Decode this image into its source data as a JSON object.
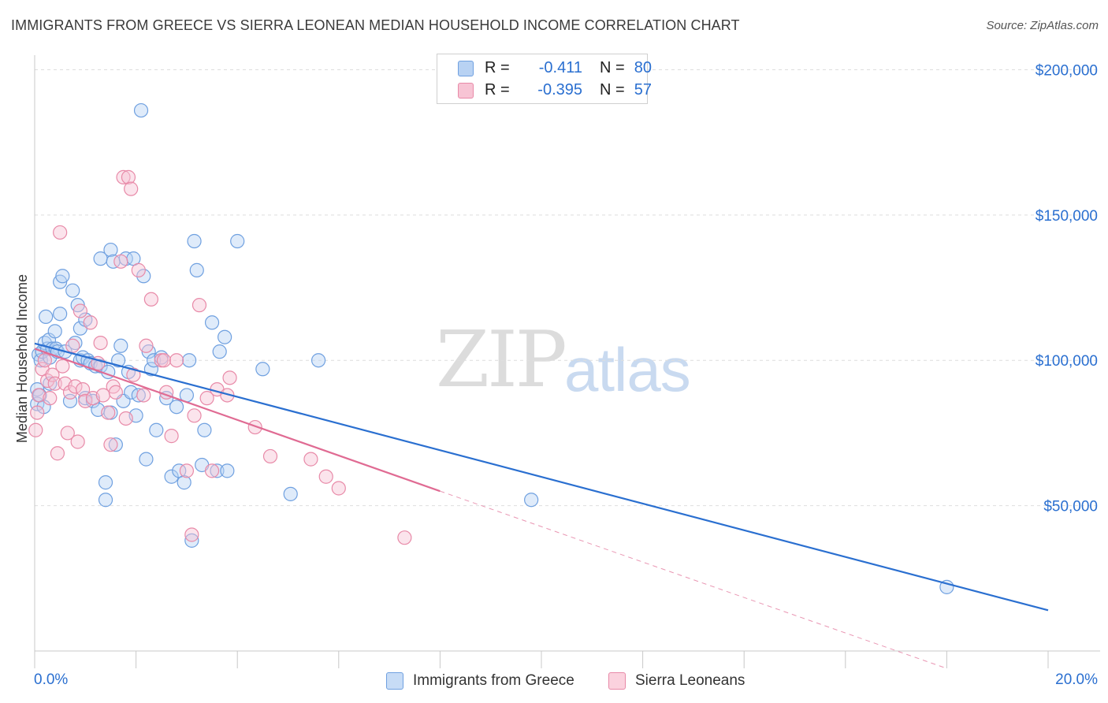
{
  "title": "IMMIGRANTS FROM GREECE VS SIERRA LEONEAN MEDIAN HOUSEHOLD INCOME CORRELATION CHART",
  "source": "Source: ZipAtlas.com",
  "watermark": {
    "zip": "ZIP",
    "atlas": "atlas"
  },
  "legend": {
    "rows": [
      {
        "r_label": "R =",
        "r_value": "-0.411",
        "n_label": "N =",
        "n_value": "80",
        "color": "#6fa0e0",
        "fill": "#b8d2f3"
      },
      {
        "r_label": "R =",
        "r_value": "-0.395",
        "n_label": "N =",
        "n_value": "57",
        "color": "#e88aa8",
        "fill": "#f7c4d4"
      }
    ]
  },
  "bottom_legend": [
    {
      "label": "Immigrants from Greece",
      "fill": "#c7dcf6",
      "stroke": "#6fa0e0"
    },
    {
      "label": "Sierra Leoneans",
      "fill": "#fbd2de",
      "stroke": "#e88aa8"
    }
  ],
  "chart_data": {
    "type": "scatter",
    "title": "IMMIGRANTS FROM GREECE VS SIERRA LEONEAN MEDIAN HOUSEHOLD INCOME CORRELATION CHART",
    "xlabel": "",
    "ylabel": "Median Household Income",
    "xlim": [
      0,
      20
    ],
    "ylim": [
      0,
      205000
    ],
    "x_tick_labels": [
      "0.0%",
      "20.0%"
    ],
    "y_ticks": [
      50000,
      100000,
      150000,
      200000
    ],
    "y_tick_labels": [
      "$50,000",
      "$100,000",
      "$150,000",
      "$200,000"
    ],
    "grid": "horizontal dashed",
    "legend_position": "top-center",
    "colors": {
      "greece": "#2a6fd0",
      "sierra": "#e06b93",
      "axis_label": "#2a6fd0"
    },
    "series": [
      {
        "name": "Immigrants from Greece",
        "trend": {
          "x": [
            0,
            20
          ],
          "y": [
            105800,
            14000
          ],
          "style": "solid"
        },
        "points": [
          [
            0.05,
            90000
          ],
          [
            0.05,
            85000
          ],
          [
            0.08,
            102000
          ],
          [
            0.1,
            88000
          ],
          [
            0.12,
            100000
          ],
          [
            0.15,
            103000
          ],
          [
            0.18,
            84000
          ],
          [
            0.2,
            106000
          ],
          [
            0.22,
            115000
          ],
          [
            0.25,
            104000
          ],
          [
            0.28,
            107000
          ],
          [
            0.3,
            92000
          ],
          [
            0.3,
            101000
          ],
          [
            0.35,
            104000
          ],
          [
            0.4,
            110000
          ],
          [
            0.42,
            104000
          ],
          [
            0.45,
            103000
          ],
          [
            0.5,
            127000
          ],
          [
            0.5,
            116000
          ],
          [
            0.55,
            129000
          ],
          [
            0.6,
            103000
          ],
          [
            0.7,
            86000
          ],
          [
            0.75,
            124000
          ],
          [
            0.8,
            106000
          ],
          [
            0.85,
            119000
          ],
          [
            0.9,
            111000
          ],
          [
            0.9,
            100000
          ],
          [
            0.95,
            101000
          ],
          [
            1.0,
            87000
          ],
          [
            1.0,
            114000
          ],
          [
            1.05,
            100000
          ],
          [
            1.1,
            99000
          ],
          [
            1.15,
            86000
          ],
          [
            1.2,
            98000
          ],
          [
            1.25,
            83000
          ],
          [
            1.3,
            98000
          ],
          [
            1.3,
            135000
          ],
          [
            1.4,
            58000
          ],
          [
            1.4,
            52000
          ],
          [
            1.45,
            96000
          ],
          [
            1.5,
            82000
          ],
          [
            1.5,
            138000
          ],
          [
            1.55,
            134000
          ],
          [
            1.6,
            71000
          ],
          [
            1.65,
            100000
          ],
          [
            1.7,
            105000
          ],
          [
            1.75,
            86000
          ],
          [
            1.8,
            135000
          ],
          [
            1.85,
            96000
          ],
          [
            1.9,
            89000
          ],
          [
            1.95,
            135000
          ],
          [
            2.0,
            81000
          ],
          [
            2.05,
            88000
          ],
          [
            2.1,
            186000
          ],
          [
            2.15,
            129000
          ],
          [
            2.2,
            66000
          ],
          [
            2.25,
            103000
          ],
          [
            2.3,
            97000
          ],
          [
            2.35,
            100000
          ],
          [
            2.4,
            76000
          ],
          [
            2.5,
            101000
          ],
          [
            2.6,
            87000
          ],
          [
            2.7,
            60000
          ],
          [
            2.8,
            84000
          ],
          [
            2.85,
            62000
          ],
          [
            2.95,
            58000
          ],
          [
            3.0,
            88000
          ],
          [
            3.05,
            100000
          ],
          [
            3.1,
            38000
          ],
          [
            3.15,
            141000
          ],
          [
            3.2,
            131000
          ],
          [
            3.3,
            64000
          ],
          [
            3.35,
            76000
          ],
          [
            3.5,
            113000
          ],
          [
            3.65,
            103000
          ],
          [
            3.75,
            108000
          ],
          [
            3.6,
            62000
          ],
          [
            3.8,
            62000
          ],
          [
            4.0,
            141000
          ],
          [
            4.5,
            97000
          ],
          [
            5.05,
            54000
          ],
          [
            5.6,
            100000
          ],
          [
            9.8,
            52000
          ],
          [
            18.0,
            22000
          ]
        ]
      },
      {
        "name": "Sierra Leoneans",
        "trend": {
          "x": [
            0,
            8
          ],
          "y": [
            104000,
            55000
          ],
          "style": "solid",
          "extension": {
            "x": [
              8,
              18
            ],
            "y": [
              55000,
              -6000
            ],
            "style": "dashed"
          }
        },
        "points": [
          [
            0.02,
            76000
          ],
          [
            0.05,
            82000
          ],
          [
            0.08,
            88000
          ],
          [
            0.15,
            97000
          ],
          [
            0.2,
            100000
          ],
          [
            0.25,
            93000
          ],
          [
            0.3,
            87000
          ],
          [
            0.35,
            95000
          ],
          [
            0.4,
            92000
          ],
          [
            0.45,
            68000
          ],
          [
            0.5,
            144000
          ],
          [
            0.55,
            98000
          ],
          [
            0.6,
            92000
          ],
          [
            0.65,
            75000
          ],
          [
            0.7,
            89000
          ],
          [
            0.75,
            105000
          ],
          [
            0.8,
            91000
          ],
          [
            0.85,
            72000
          ],
          [
            0.9,
            117000
          ],
          [
            0.95,
            90000
          ],
          [
            1.0,
            86000
          ],
          [
            1.1,
            113000
          ],
          [
            1.15,
            87000
          ],
          [
            1.25,
            99000
          ],
          [
            1.3,
            106000
          ],
          [
            1.35,
            88000
          ],
          [
            1.45,
            82000
          ],
          [
            1.5,
            71000
          ],
          [
            1.55,
            91000
          ],
          [
            1.6,
            89000
          ],
          [
            1.7,
            134000
          ],
          [
            1.75,
            163000
          ],
          [
            1.8,
            80000
          ],
          [
            1.85,
            163000
          ],
          [
            1.9,
            159000
          ],
          [
            1.95,
            95000
          ],
          [
            2.05,
            131000
          ],
          [
            2.15,
            88000
          ],
          [
            2.2,
            105000
          ],
          [
            2.3,
            121000
          ],
          [
            2.5,
            100000
          ],
          [
            2.55,
            100000
          ],
          [
            2.6,
            89000
          ],
          [
            2.7,
            74000
          ],
          [
            2.8,
            100000
          ],
          [
            3.0,
            62000
          ],
          [
            3.1,
            40000
          ],
          [
            3.15,
            81000
          ],
          [
            3.25,
            119000
          ],
          [
            3.4,
            87000
          ],
          [
            3.5,
            62000
          ],
          [
            3.6,
            90000
          ],
          [
            3.8,
            88000
          ],
          [
            3.85,
            94000
          ],
          [
            4.35,
            77000
          ],
          [
            4.65,
            67000
          ],
          [
            5.45,
            66000
          ],
          [
            5.75,
            60000
          ],
          [
            6.0,
            56000
          ],
          [
            7.3,
            39000
          ]
        ]
      }
    ]
  }
}
